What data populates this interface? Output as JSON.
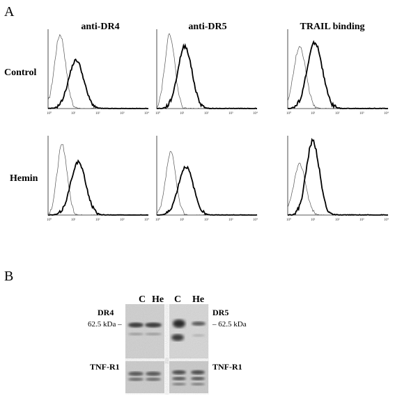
{
  "figure": {
    "panel_a": "A",
    "panel_b": "B"
  },
  "flow": {
    "columns": [
      "anti-DR4",
      "anti-DR5",
      "TRAIL binding"
    ],
    "rows": [
      "Control",
      "Hemin"
    ],
    "tick_labels": [
      "10⁰",
      "10¹",
      "10²",
      "10³",
      "10⁴"
    ]
  },
  "blot": {
    "lanes": [
      "C",
      "He",
      "C",
      "He"
    ],
    "left_top_label": "DR4",
    "right_top_label": "DR5",
    "left_bottom_label": "TNF-R1",
    "right_bottom_label": "TNF-R1",
    "mw_left": "62.5 kDa",
    "mw_right": "62.5 kDa"
  }
}
